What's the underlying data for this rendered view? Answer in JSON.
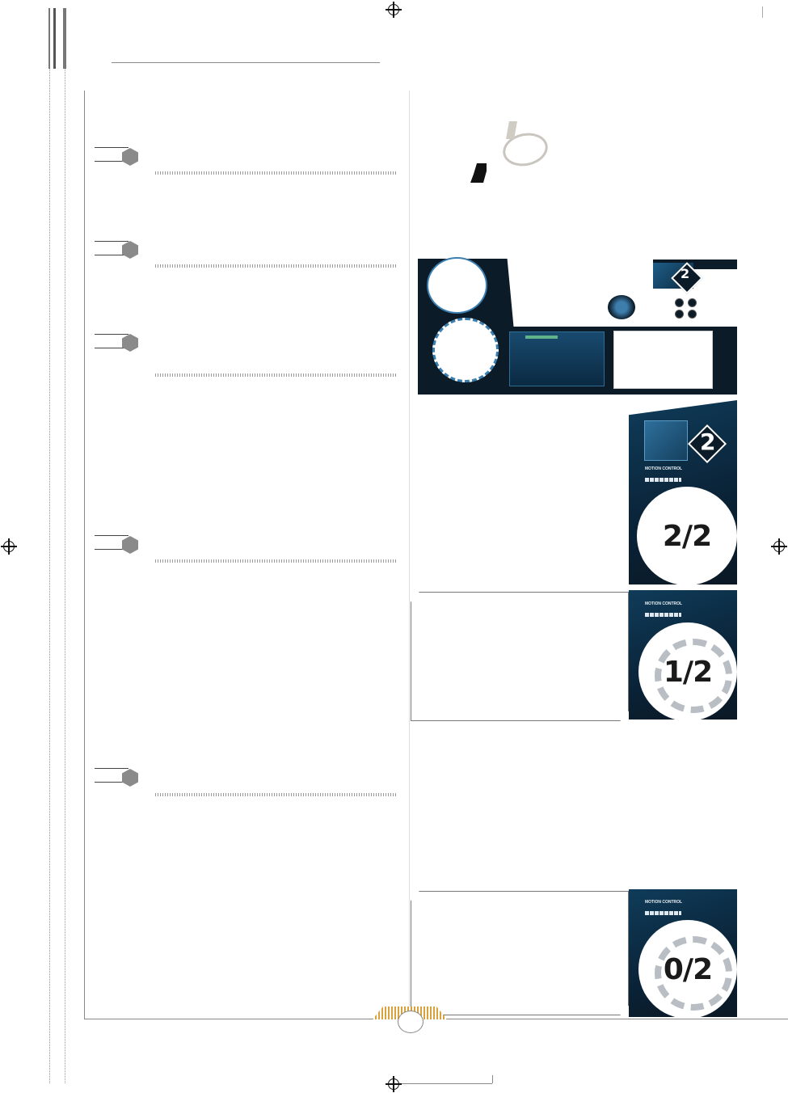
{
  "counters": [
    {
      "value": "2/2"
    },
    {
      "value": "1/2"
    },
    {
      "value": "0/2"
    }
  ],
  "cards": {
    "top_badge": "2",
    "card_badge": "2",
    "card_labels": [
      "MOTION CONTROL",
      "MOTION CONTROL",
      "MOTION CONTROL"
    ]
  },
  "sections": [
    {
      "icon": "hexagon-icon"
    },
    {
      "icon": "hexagon-icon"
    },
    {
      "icon": "hexagon-icon"
    },
    {
      "icon": "hexagon-icon"
    },
    {
      "icon": "hexagon-icon"
    }
  ],
  "colors": {
    "panel_dark": "#0c1b28",
    "card_blue": "#0f3c5a",
    "accent_gold": "#d9a23a",
    "section_grey": "#8a8a8a"
  }
}
